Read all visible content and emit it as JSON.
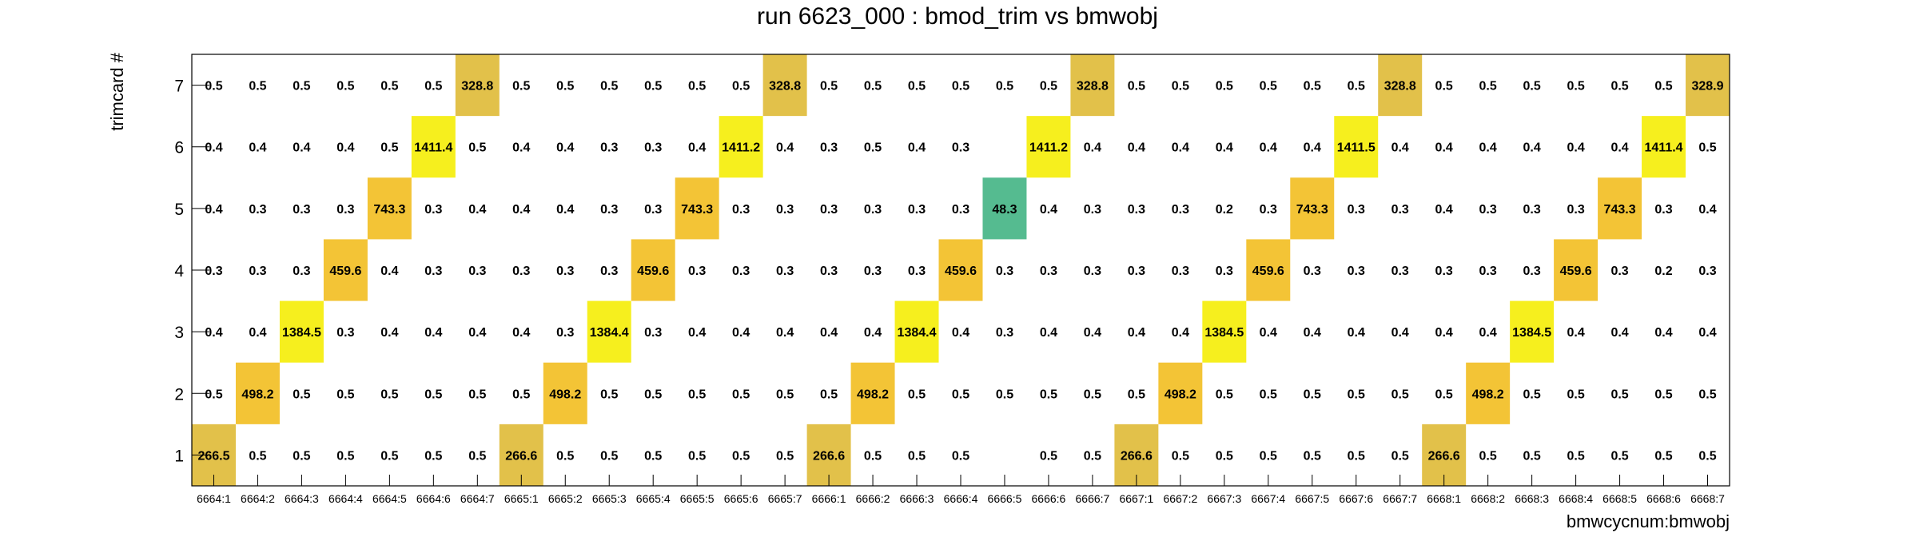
{
  "chart_data": {
    "type": "heatmap",
    "title": "run 6623_000 : bmod_trim vs bmwobj",
    "xlabel": "bmwcycnum:bmwobj",
    "ylabel": "trimcard #",
    "x": [
      "6664:1",
      "6664:2",
      "6664:3",
      "6664:4",
      "6664:5",
      "6664:6",
      "6664:7",
      "6665:1",
      "6665:2",
      "6665:3",
      "6665:4",
      "6665:5",
      "6665:6",
      "6665:7",
      "6666:1",
      "6666:2",
      "6666:3",
      "6666:4",
      "6666:5",
      "6666:6",
      "6666:7",
      "6667:1",
      "6667:2",
      "6667:3",
      "6667:4",
      "6667:5",
      "6667:6",
      "6667:7",
      "6668:1",
      "6668:2",
      "6668:3",
      "6668:4",
      "6668:5",
      "6668:6",
      "6668:7"
    ],
    "y": [
      "1",
      "2",
      "3",
      "4",
      "5",
      "6",
      "7"
    ],
    "values": {
      "7": [
        "0.5",
        "0.5",
        "0.5",
        "0.5",
        "0.5",
        "0.5",
        "328.8",
        "0.5",
        "0.5",
        "0.5",
        "0.5",
        "0.5",
        "0.5",
        "328.8",
        "0.5",
        "0.5",
        "0.5",
        "0.5",
        "0.5",
        "0.5",
        "328.8",
        "0.5",
        "0.5",
        "0.5",
        "0.5",
        "0.5",
        "0.5",
        "328.8",
        "0.5",
        "0.5",
        "0.5",
        "0.5",
        "0.5",
        "0.5",
        "328.9"
      ],
      "6": [
        "0.4",
        "0.4",
        "0.4",
        "0.4",
        "0.5",
        "1411.4",
        "0.5",
        "0.4",
        "0.4",
        "0.3",
        "0.3",
        "0.4",
        "1411.2",
        "0.4",
        "0.3",
        "0.5",
        "0.4",
        "0.3",
        "",
        "1411.2",
        "0.4",
        "0.4",
        "0.4",
        "0.4",
        "0.4",
        "0.4",
        "1411.5",
        "0.4",
        "0.4",
        "0.4",
        "0.4",
        "0.4",
        "0.4",
        "1411.4",
        "0.5"
      ],
      "5": [
        "0.4",
        "0.3",
        "0.3",
        "0.3",
        "743.3",
        "0.3",
        "0.4",
        "0.4",
        "0.4",
        "0.3",
        "0.3",
        "743.3",
        "0.3",
        "0.3",
        "0.3",
        "0.3",
        "0.3",
        "0.3",
        "48.3",
        "0.4",
        "0.3",
        "0.3",
        "0.3",
        "0.2",
        "0.3",
        "743.3",
        "0.3",
        "0.3",
        "0.4",
        "0.3",
        "0.3",
        "0.3",
        "743.3",
        "0.3",
        "0.4"
      ],
      "4": [
        "0.3",
        "0.3",
        "0.3",
        "459.6",
        "0.4",
        "0.3",
        "0.3",
        "0.3",
        "0.3",
        "0.3",
        "459.6",
        "0.3",
        "0.3",
        "0.3",
        "0.3",
        "0.3",
        "0.3",
        "459.6",
        "0.3",
        "0.3",
        "0.3",
        "0.3",
        "0.3",
        "0.3",
        "459.6",
        "0.3",
        "0.3",
        "0.3",
        "0.3",
        "0.3",
        "0.3",
        "459.6",
        "0.3",
        "0.2",
        "0.3"
      ],
      "3": [
        "0.4",
        "0.4",
        "1384.5",
        "0.3",
        "0.4",
        "0.4",
        "0.4",
        "0.4",
        "0.3",
        "1384.4",
        "0.3",
        "0.4",
        "0.4",
        "0.4",
        "0.4",
        "0.4",
        "1384.4",
        "0.4",
        "0.3",
        "0.4",
        "0.4",
        "0.4",
        "0.4",
        "1384.5",
        "0.4",
        "0.4",
        "0.4",
        "0.4",
        "0.4",
        "0.4",
        "1384.5",
        "0.4",
        "0.4",
        "0.4",
        "0.4"
      ],
      "2": [
        "0.5",
        "498.2",
        "0.5",
        "0.5",
        "0.5",
        "0.5",
        "0.5",
        "0.5",
        "498.2",
        "0.5",
        "0.5",
        "0.5",
        "0.5",
        "0.5",
        "0.5",
        "498.2",
        "0.5",
        "0.5",
        "0.5",
        "0.5",
        "0.5",
        "0.5",
        "498.2",
        "0.5",
        "0.5",
        "0.5",
        "0.5",
        "0.5",
        "0.5",
        "498.2",
        "0.5",
        "0.5",
        "0.5",
        "0.5",
        "0.5"
      ],
      "1": [
        "266.5",
        "0.5",
        "0.5",
        "0.5",
        "0.5",
        "0.5",
        "0.5",
        "266.6",
        "0.5",
        "0.5",
        "0.5",
        "0.5",
        "0.5",
        "0.5",
        "266.6",
        "0.5",
        "0.5",
        "0.5",
        "",
        "0.5",
        "0.5",
        "266.6",
        "0.5",
        "0.5",
        "0.5",
        "0.5",
        "0.5",
        "0.5",
        "266.6",
        "0.5",
        "0.5",
        "0.5",
        "0.5",
        "0.5",
        "0.5"
      ]
    },
    "colors": {
      "gold": "#e2c14a",
      "orange": "#f3c436",
      "yellow": "#f6ef1e",
      "teal": "#55bb90"
    }
  }
}
